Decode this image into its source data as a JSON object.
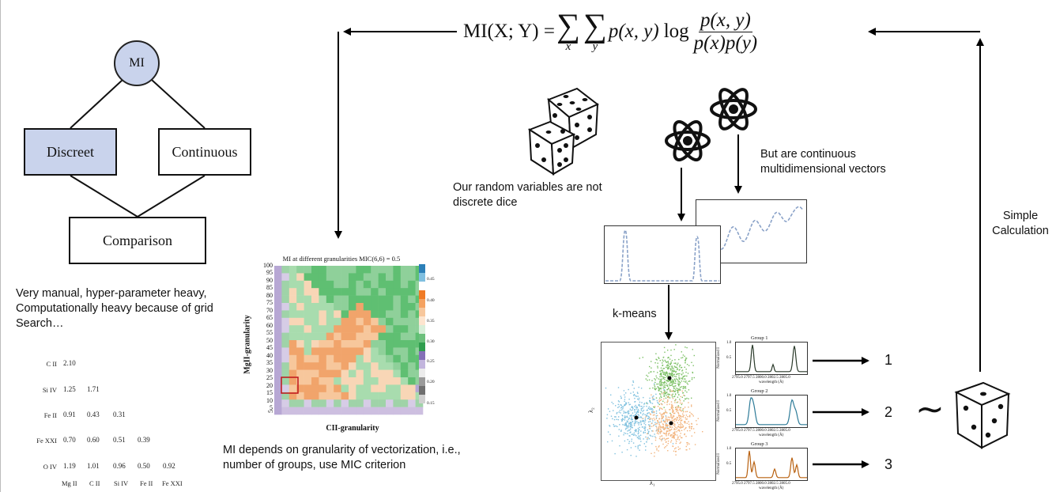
{
  "formula": {
    "lhs": "MI(X; Y) = ",
    "sum_symbol": "∑",
    "sum_var_x": "x",
    "sum_var_y": "y",
    "term": "p(x, y)",
    "log": "log",
    "numerator": "p(x, y)",
    "denominator": "p(x)p(y)"
  },
  "tree": {
    "root": "MI",
    "discreet": "Discreet",
    "continuous": "Continuous",
    "comparison": "Comparison"
  },
  "notes": {
    "manual": "Very manual, hyper-parameter heavy, Computationally heavy because of grid Search…",
    "granularity": "MI depends on granularity of vectorization, i.e., number of groups, use MIC criterion",
    "dice": "Our random variables are not discrete dice",
    "continuous": "But are continuous multidimensional vectors",
    "simple": "Simple Calculation",
    "kmeans": "k-means"
  },
  "corr_table": {
    "rows": [
      {
        "label": "C II",
        "values": [
          "2.10"
        ]
      },
      {
        "label": "Si IV",
        "values": [
          "1.25",
          "1.71"
        ]
      },
      {
        "label": "Fe II",
        "values": [
          "0.91",
          "0.43",
          "0.31"
        ]
      },
      {
        "label": "Fe XXI",
        "values": [
          "0.70",
          "0.60",
          "0.51",
          "0.39"
        ]
      },
      {
        "label": "O IV",
        "values": [
          "1.19",
          "1.01",
          "0.96",
          "0.50",
          "0.92"
        ]
      }
    ],
    "col_labels": [
      "Mg II",
      "C II",
      "Si IV",
      "Fe II",
      "Fe XXI"
    ]
  },
  "heatmap": {
    "title": "MI at different granularities MIC(6,6) = 0.5",
    "xlabel": "CII-granularity",
    "ylabel": "MgII-granularity",
    "ticks": [
      "5",
      "10",
      "15",
      "20",
      "25",
      "30",
      "35",
      "40",
      "45",
      "50",
      "55",
      "60",
      "65",
      "70",
      "75",
      "80",
      "85",
      "90",
      "95",
      "100"
    ],
    "colorbar_ticks": [
      "0.45",
      "0.40",
      "0.35",
      "0.30",
      "0.25",
      "0.20",
      "0.15"
    ]
  },
  "scatter": {
    "xlabel": "λ₁",
    "ylabel": "λ₂",
    "colors": {
      "green": "#7cc065",
      "blue": "#7ec0de",
      "orange": "#f2b37c"
    }
  },
  "groups": [
    {
      "title": "Group 1",
      "ylabel": "Normalized I",
      "ytick_top": "1.0",
      "ytick_mid": "0.5",
      "xticks": "2795.0 2797.5 2800.0 2802.5 2805.0",
      "xlabel": "wavelength (Å)",
      "color": "#2a3a2a"
    },
    {
      "title": "Group 2",
      "ylabel": "Normalized I",
      "ytick_top": "1.0",
      "ytick_mid": "0.5",
      "xticks": "2795.0 2797.5 2800.0 2802.5 2805.0",
      "xlabel": "wavelength (Å)",
      "color": "#2d7b98"
    },
    {
      "title": "Group 3",
      "ylabel": "Normalized I",
      "ytick_top": "1.0",
      "ytick_mid": "0.5",
      "xticks": "2795.0 2797.5 2800.0 2802.5 2805.0",
      "xlabel": "wavelength (Å)",
      "color": "#b8600f"
    }
  ],
  "cluster_labels": [
    "1",
    "2",
    "3"
  ],
  "tilde": "∼",
  "icons": [
    "dice-icon",
    "atom-icon",
    "arrow-icon"
  ]
}
